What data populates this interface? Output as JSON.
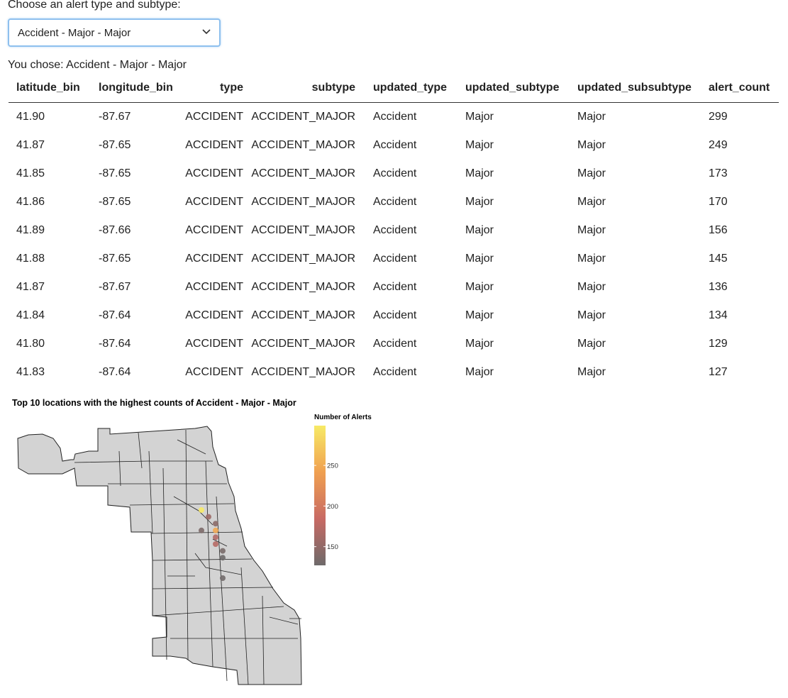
{
  "input": {
    "label": "Choose an alert type and subtype:",
    "selected": "Accident - Major - Major"
  },
  "choice_text": "You chose: Accident - Major - Major",
  "table": {
    "columns": [
      "latitude_bin",
      "longitude_bin",
      "type",
      "subtype",
      "updated_type",
      "updated_subtype",
      "updated_subsubtype",
      "alert_count"
    ],
    "rows": [
      [
        "41.90",
        "-87.67",
        "ACCIDENT",
        "ACCIDENT_MAJOR",
        "Accident",
        "Major",
        "Major",
        "299"
      ],
      [
        "41.87",
        "-87.65",
        "ACCIDENT",
        "ACCIDENT_MAJOR",
        "Accident",
        "Major",
        "Major",
        "249"
      ],
      [
        "41.85",
        "-87.65",
        "ACCIDENT",
        "ACCIDENT_MAJOR",
        "Accident",
        "Major",
        "Major",
        "173"
      ],
      [
        "41.86",
        "-87.65",
        "ACCIDENT",
        "ACCIDENT_MAJOR",
        "Accident",
        "Major",
        "Major",
        "170"
      ],
      [
        "41.89",
        "-87.66",
        "ACCIDENT",
        "ACCIDENT_MAJOR",
        "Accident",
        "Major",
        "Major",
        "156"
      ],
      [
        "41.88",
        "-87.65",
        "ACCIDENT",
        "ACCIDENT_MAJOR",
        "Accident",
        "Major",
        "Major",
        "145"
      ],
      [
        "41.87",
        "-87.67",
        "ACCIDENT",
        "ACCIDENT_MAJOR",
        "Accident",
        "Major",
        "Major",
        "136"
      ],
      [
        "41.84",
        "-87.64",
        "ACCIDENT",
        "ACCIDENT_MAJOR",
        "Accident",
        "Major",
        "Major",
        "134"
      ],
      [
        "41.80",
        "-87.64",
        "ACCIDENT",
        "ACCIDENT_MAJOR",
        "Accident",
        "Major",
        "Major",
        "129"
      ],
      [
        "41.83",
        "-87.64",
        "ACCIDENT",
        "ACCIDENT_MAJOR",
        "Accident",
        "Major",
        "Major",
        "127"
      ]
    ]
  },
  "chart_data": {
    "type": "scatter",
    "title": "Top 10 locations with the highest counts of Accident - Major - Major",
    "x": [
      -87.67,
      -87.65,
      -87.65,
      -87.65,
      -87.66,
      -87.65,
      -87.67,
      -87.64,
      -87.64,
      -87.64
    ],
    "y": [
      41.9,
      41.87,
      41.85,
      41.86,
      41.89,
      41.88,
      41.87,
      41.84,
      41.8,
      41.83
    ],
    "values": [
      299,
      249,
      173,
      170,
      156,
      145,
      136,
      134,
      129,
      127
    ],
    "colorbar": {
      "title": "Number of Alerts",
      "lim": [
        127,
        299
      ],
      "ticks": [
        150,
        200,
        250
      ],
      "colors": [
        "#6e6a6a",
        "#c86a64",
        "#f0a050",
        "#f7ea66"
      ]
    }
  }
}
